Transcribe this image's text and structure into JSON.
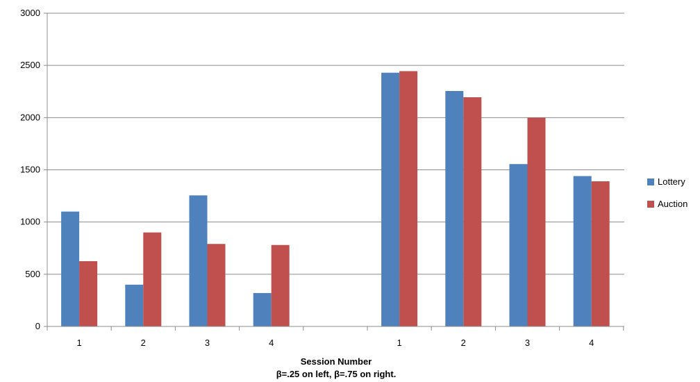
{
  "chart_data": {
    "type": "bar",
    "title": "",
    "xlabel": "Session Number",
    "xlabel_line2": "β=.25 on left, β=.75 on right.",
    "ylabel": "",
    "ylim": [
      0,
      3000
    ],
    "yticks": [
      0,
      500,
      1000,
      1500,
      2000,
      2500,
      3000
    ],
    "grid": true,
    "legend_position": "right",
    "categories": [
      "1",
      "2",
      "3",
      "4",
      "",
      "1",
      "2",
      "3",
      "4"
    ],
    "series": [
      {
        "name": "Lottery",
        "color": "#4F81BD",
        "values": [
          1100,
          400,
          1255,
          320,
          null,
          2430,
          2255,
          1555,
          1440
        ]
      },
      {
        "name": "Auction",
        "color": "#C0504D",
        "values": [
          625,
          900,
          790,
          780,
          null,
          2445,
          2195,
          2000,
          1390
        ]
      }
    ]
  }
}
